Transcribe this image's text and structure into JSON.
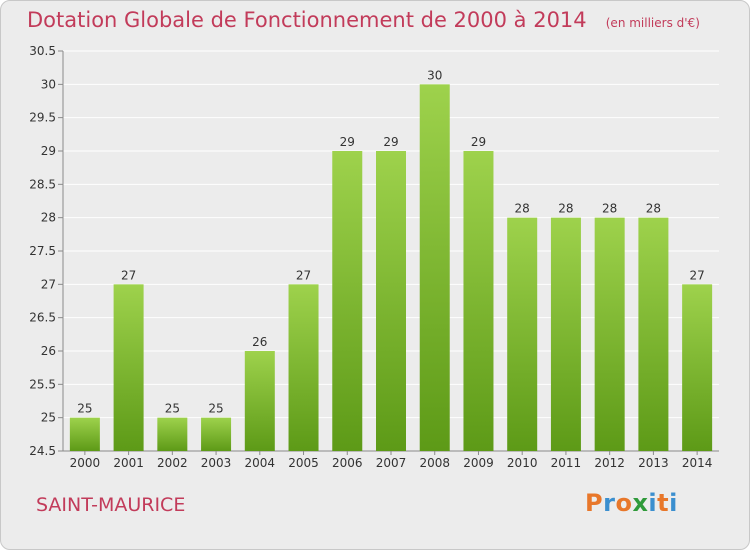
{
  "header": {
    "title": "Dotation Globale de Fonctionnement de 2000 à 2014",
    "unit": "(en milliers d'€)"
  },
  "footer": {
    "place": "SAINT-MAURICE",
    "logo": "Proxiti"
  },
  "colors": {
    "title": "#c23b5a",
    "bar_top": "#9ed24c",
    "bar_bottom": "#5d9a17",
    "grid": "#ffffff",
    "background": "#ececec",
    "logo_letters": [
      "#e8772a",
      "#3b8fcf",
      "#e8772a",
      "#2f9a3a",
      "#3b8fcf",
      "#e8772a",
      "#3b8fcf"
    ]
  },
  "chart_data": {
    "type": "bar",
    "title": "Dotation Globale de Fonctionnement de 2000 à 2014",
    "subtitle": "(en milliers d'€)",
    "xlabel": "",
    "ylabel": "",
    "categories": [
      "2000",
      "2001",
      "2002",
      "2003",
      "2004",
      "2005",
      "2006",
      "2007",
      "2008",
      "2009",
      "2010",
      "2011",
      "2012",
      "2013",
      "2014"
    ],
    "values": [
      25,
      27,
      25,
      25,
      26,
      27,
      29,
      29,
      30,
      29,
      28,
      28,
      28,
      28,
      27
    ],
    "data_labels": [
      "25",
      "27",
      "25",
      "25",
      "26",
      "27",
      "29",
      "29",
      "30",
      "29",
      "28",
      "28",
      "28",
      "28",
      "27"
    ],
    "ylim": [
      24.5,
      30.5
    ],
    "yticks": [
      24.5,
      25,
      25.5,
      26,
      26.5,
      27,
      27.5,
      28,
      28.5,
      29,
      29.5,
      30,
      30.5
    ],
    "ytick_labels": [
      "24.5",
      "25",
      "25.5",
      "26",
      "26.5",
      "27",
      "27.5",
      "28",
      "28.5",
      "29",
      "29.5",
      "30",
      "30.5"
    ],
    "grid": true,
    "legend": "none"
  }
}
